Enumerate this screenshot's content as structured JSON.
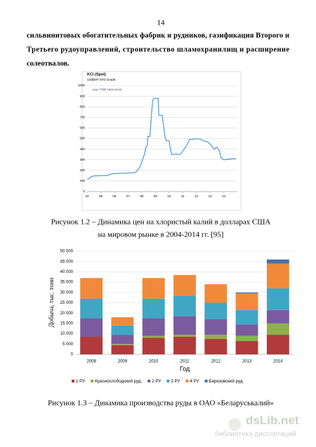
{
  "page_number": "14",
  "paragraph": [
    "сильвинитовых обогатительных фабрик и рудников, газификация Второго и",
    "Третьего рудоуправлений, строительство шламохранилищ и расширение",
    "солеотвалов."
  ],
  "captions": [
    "Рисунок 1.2 – Динамика цен на хлористый калий в долларах США",
    "на мировом рынке в 2004-2014 гг. [95]",
    "Рисунок 1.3 – Динамика производства руды в ОАО «Беларуськалий»"
  ],
  "watermark": {
    "title": "dsLib.net",
    "subtitle": "библиотека диссертаций"
  },
  "chart_data": [
    {
      "type": "line",
      "title": "KCl (Spot)",
      "subtitle": "US$/MT STD Grade",
      "x": [
        4.0,
        4.1,
        4.3,
        4.5,
        5.0,
        5.5,
        5.7,
        6.0,
        6.5,
        7.0,
        7.5,
        7.7,
        7.9,
        8.0,
        8.2,
        8.3,
        8.4,
        8.45,
        8.6,
        8.7,
        8.8,
        8.9,
        9.2,
        9.25,
        9.5,
        9.7,
        9.8,
        10.0,
        10.1,
        10.2,
        10.5,
        10.8,
        11.0,
        11.3,
        11.5,
        11.8,
        12.0,
        12.3,
        12.5,
        12.8,
        13.0,
        13.3,
        13.5,
        13.7,
        13.8,
        14.0,
        14.3,
        14.6,
        14.9
      ],
      "series": [
        {
          "name": "FOB Vancouver",
          "color": "#5aa0d8",
          "values": [
            120,
            118,
            140,
            148,
            150,
            152,
            165,
            170,
            172,
            175,
            178,
            200,
            240,
            280,
            350,
            420,
            430,
            520,
            520,
            700,
            860,
            880,
            880,
            720,
            720,
            520,
            480,
            480,
            400,
            350,
            355,
            350,
            380,
            440,
            490,
            495,
            500,
            495,
            480,
            470,
            450,
            400,
            420,
            380,
            320,
            300,
            305,
            310,
            310
          ]
        }
      ],
      "xlim": [
        4,
        15
      ],
      "xticks": [
        {
          "value": 4,
          "label": "04"
        },
        {
          "value": 5,
          "label": "05"
        },
        {
          "value": 6,
          "label": "06"
        },
        {
          "value": 7,
          "label": "07"
        },
        {
          "value": 8,
          "label": "08"
        },
        {
          "value": 9,
          "label": "09"
        },
        10,
        11,
        12,
        13,
        14
      ],
      "ylim": [
        0,
        1000
      ],
      "yticks": [
        0,
        100,
        200,
        300,
        400,
        500,
        600,
        700,
        800,
        900,
        1000
      ],
      "grid": true
    },
    {
      "type": "stacked-bar",
      "ylabel": "Добыча, тыс. тонн",
      "xlabel": "Год",
      "categories": [
        "2008",
        "2009",
        "2010",
        "2011",
        "2012",
        "2013",
        "2014"
      ],
      "series": [
        {
          "name": "1 РУ",
          "color": "#b23a3a",
          "values": [
            8500,
            4500,
            8000,
            8500,
            7500,
            6500,
            9500
          ]
        },
        {
          "name": "Краснослободский руд.",
          "color": "#8fb04a",
          "values": [
            0,
            500,
            1000,
            1000,
            2000,
            2500,
            5500
          ]
        },
        {
          "name": "2 РУ",
          "color": "#7a5ba0",
          "values": [
            9000,
            4500,
            8500,
            9000,
            7500,
            5500,
            6500
          ]
        },
        {
          "name": "3 РУ",
          "color": "#3fa7c4",
          "values": [
            9500,
            4500,
            9500,
            10000,
            8000,
            7000,
            10500
          ]
        },
        {
          "name": "4 РУ",
          "color": "#f08a3a",
          "values": [
            10000,
            4000,
            10000,
            10000,
            9000,
            8000,
            12000
          ]
        },
        {
          "name": "Березовский руд.",
          "color": "#4472a8",
          "values": [
            0,
            0,
            0,
            0,
            0,
            500,
            2000
          ]
        }
      ],
      "ylim": [
        0,
        50000
      ],
      "yticks": [
        0,
        {
          "value": 5000,
          "label": "5 000"
        },
        {
          "value": 10000,
          "label": "10 000"
        },
        {
          "value": 15000,
          "label": "15 000"
        },
        {
          "value": 20000,
          "label": "20 000"
        },
        {
          "value": 25000,
          "label": "25 000"
        },
        {
          "value": 30000,
          "label": "30 000"
        },
        {
          "value": 35000,
          "label": "35 000"
        },
        {
          "value": 40000,
          "label": "40 000"
        },
        {
          "value": 45000,
          "label": "45 000"
        },
        {
          "value": 50000,
          "label": "50 000"
        }
      ],
      "grid": true
    }
  ]
}
